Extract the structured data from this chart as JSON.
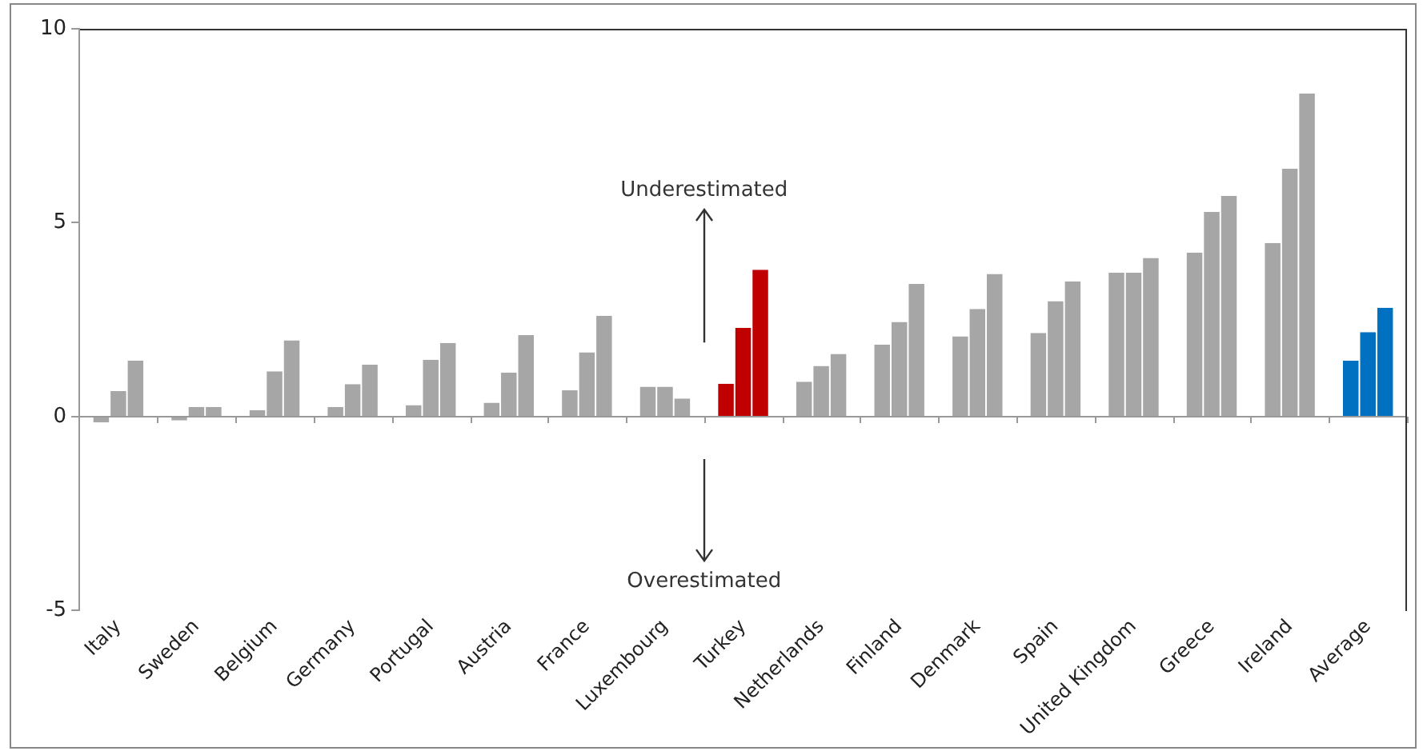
{
  "chart_data": {
    "type": "bar",
    "categories": [
      "Italy",
      "Sweden",
      "Belgium",
      "Germany",
      "Portugal",
      "Austria",
      "France",
      "Luxembourg",
      "Turkey",
      "Netherlands",
      "Finland",
      "Denmark",
      "Spain",
      "United Kingdom",
      "Greece",
      "Ireland",
      "Average"
    ],
    "series": [
      {
        "colors": [
          "#a6a6a6",
          "#a6a6a6",
          "#a6a6a6",
          "#a6a6a6",
          "#a6a6a6",
          "#a6a6a6",
          "#a6a6a6",
          "#a6a6a6",
          "#c00000",
          "#a6a6a6",
          "#a6a6a6",
          "#a6a6a6",
          "#a6a6a6",
          "#a6a6a6",
          "#a6a6a6",
          "#a6a6a6",
          "#0070c0"
        ],
        "values": [
          -0.15,
          -0.1,
          0.17,
          0.25,
          0.3,
          0.36,
          0.68,
          0.77,
          0.85,
          0.9,
          1.86,
          2.07,
          2.16,
          3.71,
          4.23,
          4.48,
          1.44
        ]
      },
      {
        "colors": [
          "#a6a6a6",
          "#a6a6a6",
          "#a6a6a6",
          "#a6a6a6",
          "#a6a6a6",
          "#a6a6a6",
          "#a6a6a6",
          "#a6a6a6",
          "#c00000",
          "#a6a6a6",
          "#a6a6a6",
          "#a6a6a6",
          "#a6a6a6",
          "#a6a6a6",
          "#a6a6a6",
          "#a6a6a6",
          "#0070c0"
        ],
        "values": [
          0.66,
          0.25,
          1.17,
          0.84,
          1.47,
          1.14,
          1.66,
          0.77,
          2.29,
          1.31,
          2.44,
          2.78,
          2.98,
          3.71,
          5.28,
          6.39,
          2.18
        ]
      },
      {
        "colors": [
          "#a6a6a6",
          "#a6a6a6",
          "#a6a6a6",
          "#a6a6a6",
          "#a6a6a6",
          "#a6a6a6",
          "#a6a6a6",
          "#a6a6a6",
          "#c00000",
          "#a6a6a6",
          "#a6a6a6",
          "#a6a6a6",
          "#a6a6a6",
          "#a6a6a6",
          "#a6a6a6",
          "#a6a6a6",
          "#0070c0"
        ],
        "values": [
          1.45,
          0.25,
          1.97,
          1.34,
          1.9,
          2.1,
          2.6,
          0.47,
          3.79,
          1.62,
          3.42,
          3.68,
          3.49,
          4.09,
          5.69,
          8.33,
          2.81
        ]
      }
    ],
    "ylim": [
      -5,
      10
    ],
    "yticks": [
      -5,
      0,
      5,
      10
    ],
    "legend": false,
    "annotations": [
      "Underestimated",
      "Overestimated"
    ]
  }
}
